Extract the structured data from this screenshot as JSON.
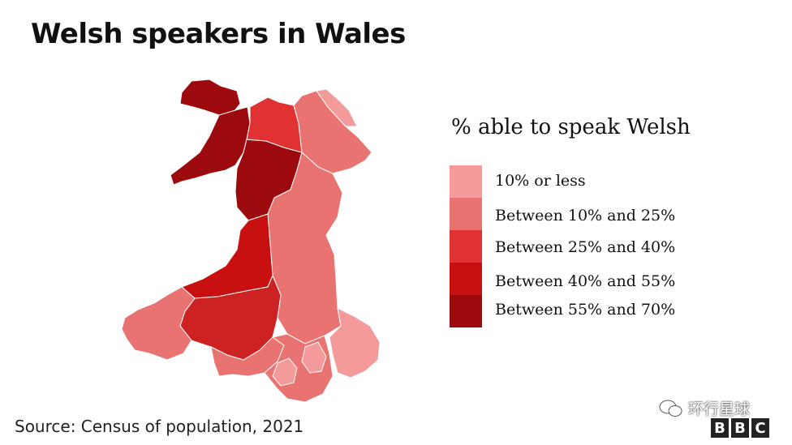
{
  "title": "Welsh speakers in Wales",
  "legend": {
    "title": "% able to speak Welsh",
    "items": [
      {
        "label": "10% or less",
        "color": "#f59a9a"
      },
      {
        "label": "Between 10% and 25%",
        "color": "#e87370"
      },
      {
        "label": "Between 25% and 40%",
        "color": "#e03232"
      },
      {
        "label": "Between 40% and 55%",
        "color": "#c81010"
      },
      {
        "label": "Between 55% and 70%",
        "color": "#9c0a0d"
      }
    ]
  },
  "source": "Source: Census of population, 2021",
  "watermark": {
    "text": "环行星球"
  },
  "logo": {
    "letters": [
      "B",
      "B",
      "C"
    ]
  }
}
